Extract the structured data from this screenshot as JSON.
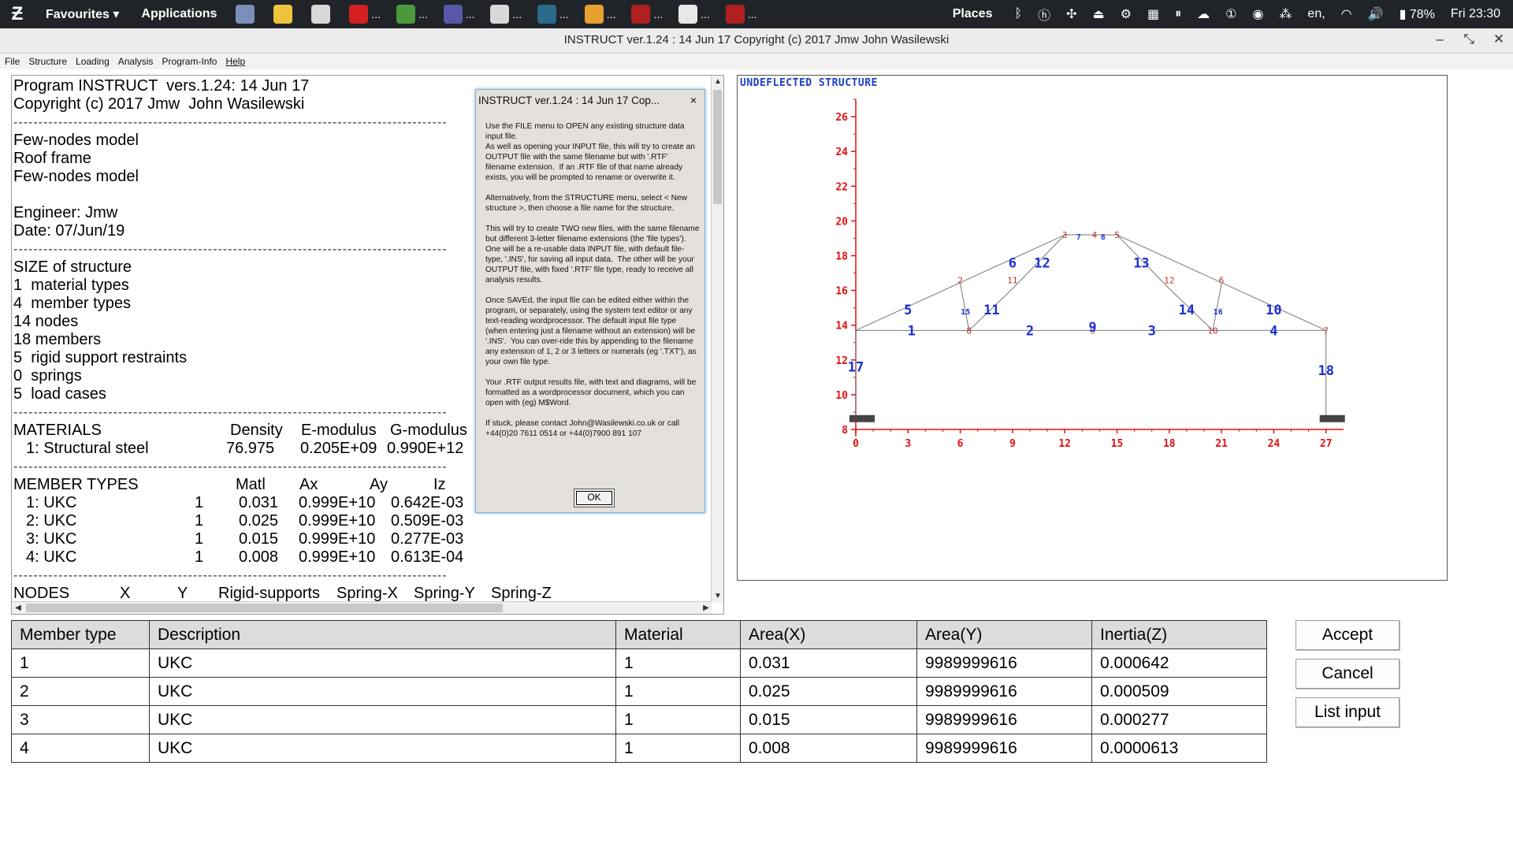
{
  "taskbar": {
    "favourites": "Favourites ▾",
    "applications": "Applications",
    "tasks": [
      {
        "icon": "chromium-icon",
        "color": "#7a8fb8",
        "dots": ""
      },
      {
        "icon": "notes-icon",
        "color": "#f0c33c",
        "dots": ""
      },
      {
        "icon": "folder-icon",
        "color": "#d8d8d8",
        "dots": ""
      },
      {
        "icon": "virus-icon",
        "color": "#d42020",
        "dots": "..."
      },
      {
        "icon": "chrome-icon",
        "color": "#4a9a3c",
        "dots": "..."
      },
      {
        "icon": "editor-icon",
        "color": "#5858a8",
        "dots": "..."
      },
      {
        "icon": "folder-icon",
        "color": "#d8d8d8",
        "dots": "..."
      },
      {
        "icon": "book-icon",
        "color": "#2a6a8a",
        "dots": "..."
      },
      {
        "icon": "pinwheel-icon",
        "color": "#e8a030",
        "dots": "..."
      },
      {
        "icon": "wine-icon",
        "color": "#b02020",
        "dots": "..."
      },
      {
        "icon": "window-icon",
        "color": "#e8e8e8",
        "dots": "..."
      },
      {
        "icon": "wine-icon",
        "color": "#b02020",
        "dots": "..."
      }
    ],
    "places": "Places",
    "keyboard": "en,",
    "battery": "78%",
    "clock": "Fri 23:30"
  },
  "window": {
    "title": "INSTRUCT ver.1.24 : 14 Jun 17 Copyright (c) 2017 Jmw  John Wasilewski",
    "minimize": "–",
    "restore": "⤡",
    "close": "✕"
  },
  "menubar": [
    "File",
    "Structure",
    "Loading",
    "Analysis",
    "Program-Info",
    "Help"
  ],
  "report": {
    "lines": [
      "Program INSTRUCT  vers.1.24: 14 Jun 17",
      "Copyright (c) 2017 Jmw  John Wasilewski",
      "---------------------------------------------------------------------------------------",
      "Few-nodes model",
      "Roof frame",
      "Few-nodes model",
      "",
      "Engineer: Jmw",
      "Date: 07/Jun/19",
      "---------------------------------------------------------------------------------------",
      "SIZE of structure",
      "1  material types",
      "4  member types",
      "14 nodes",
      "18 members",
      "5  rigid support restraints",
      "0  springs",
      "5  load cases",
      "---------------------------------------------------------------------------------------"
    ],
    "materials_header": [
      "MATERIALS",
      "Density",
      "E-modulus",
      "G-modulus"
    ],
    "materials_row": [
      "1: Structural steel",
      "76.975",
      "0.205E+09",
      "0.990E+12"
    ],
    "sep": "---------------------------------------------------------------------------------------",
    "member_header": [
      "MEMBER TYPES",
      "Matl",
      "Ax",
      "Ay",
      "Iz"
    ],
    "member_rows": [
      [
        "1: UKC",
        "1",
        "0.031",
        "0.999E+10",
        "0.642E-03"
      ],
      [
        "2: UKC",
        "1",
        "0.025",
        "0.999E+10",
        "0.509E-03"
      ],
      [
        "3: UKC",
        "1",
        "0.015",
        "0.999E+10",
        "0.277E-03"
      ],
      [
        "4: UKC",
        "1",
        "0.008",
        "0.999E+10",
        "0.613E-04"
      ]
    ],
    "nodes_header": [
      "NODES",
      "X",
      "Y",
      "Rigid-supports",
      "Spring-X",
      "Spring-Y",
      "Spring-Z"
    ]
  },
  "dialog": {
    "title": "INSTRUCT ver.1.24 : 14 Jun 17 Cop...",
    "close": "×",
    "body": "Use the FILE menu to OPEN any existing structure data input file.\nAs well as opening your INPUT file, this will try to create an OUTPUT file with the same filename but with '.RTF' filename extension.  If an .RTF file of that name already exists, you will be prompted to rename or overwrite it.\n\nAlternatively, from the STRUCTURE menu, select < New structure >, then choose a file name for the structure.\n\nThis will try to create TWO new files, with the same filename but different 3-letter filename extensions (the 'file types').  One will be a re-usable data INPUT file, with default file-type, '.INS', for saving all input data.  The other will be your OUTPUT file, with fixed '.RTF' file type, ready to receive all analysis results.\n\nOnce SAVEd, the input file can be edited either within the program, or separately, using the system text editor or any text-reading wordprocessor. The default input file type (when entering just a filename without an extension) will be '.INS'.  You can over-ride this by appending to the filename any extension of 1, 2 or 3 letters or numerals (eg '.TXT'), as your own file type.\n\nYour .RTF output results file, with text and diagrams, will be formatted as a wordprocessor document, which you can open with (eg) M$Word.\n\nIf stuck, please contact John@Wasilewski.co.uk or call +44(0)20 7611 0514 or +44(0)7900 891 107",
    "ok": "OK"
  },
  "diagram": {
    "label": "UNDEFLECTED STRUCTURE",
    "x_ticks": [
      "0",
      "3",
      "6",
      "9",
      "12",
      "15",
      "18",
      "21",
      "24",
      "27"
    ],
    "y_ticks": [
      "8",
      "10",
      "12",
      "14",
      "16",
      "18",
      "20",
      "22",
      "24",
      "26"
    ],
    "node_labels": [
      "2",
      "3",
      "4",
      "5",
      "6",
      "7",
      "8",
      "10",
      "11",
      "12",
      "9"
    ],
    "member_labels": [
      "1",
      "2",
      "3",
      "4",
      "5",
      "6",
      "7",
      "8",
      "9",
      "10",
      "11",
      "12",
      "13",
      "14",
      "15",
      "16",
      "17",
      "18"
    ],
    "axis_color": "#e01010",
    "member_color": "#1a2fd0",
    "node_color": "#c03030"
  },
  "member_table": {
    "headers": [
      "Member type",
      "Description",
      "Material",
      "Area(X)",
      "Area(Y)",
      "Inertia(Z)"
    ],
    "rows": [
      [
        "1",
        "UKC",
        "1",
        "0.031",
        "9989999616",
        "0.000642"
      ],
      [
        "2",
        "UKC",
        "1",
        "0.025",
        "9989999616",
        "0.000509"
      ],
      [
        "3",
        "UKC",
        "1",
        "0.015",
        "9989999616",
        "0.000277"
      ],
      [
        "4",
        "UKC",
        "1",
        "0.008",
        "9989999616",
        "0.0000613"
      ]
    ]
  },
  "buttons": {
    "accept": "Accept",
    "cancel": "Cancel",
    "list_input": "List input"
  }
}
